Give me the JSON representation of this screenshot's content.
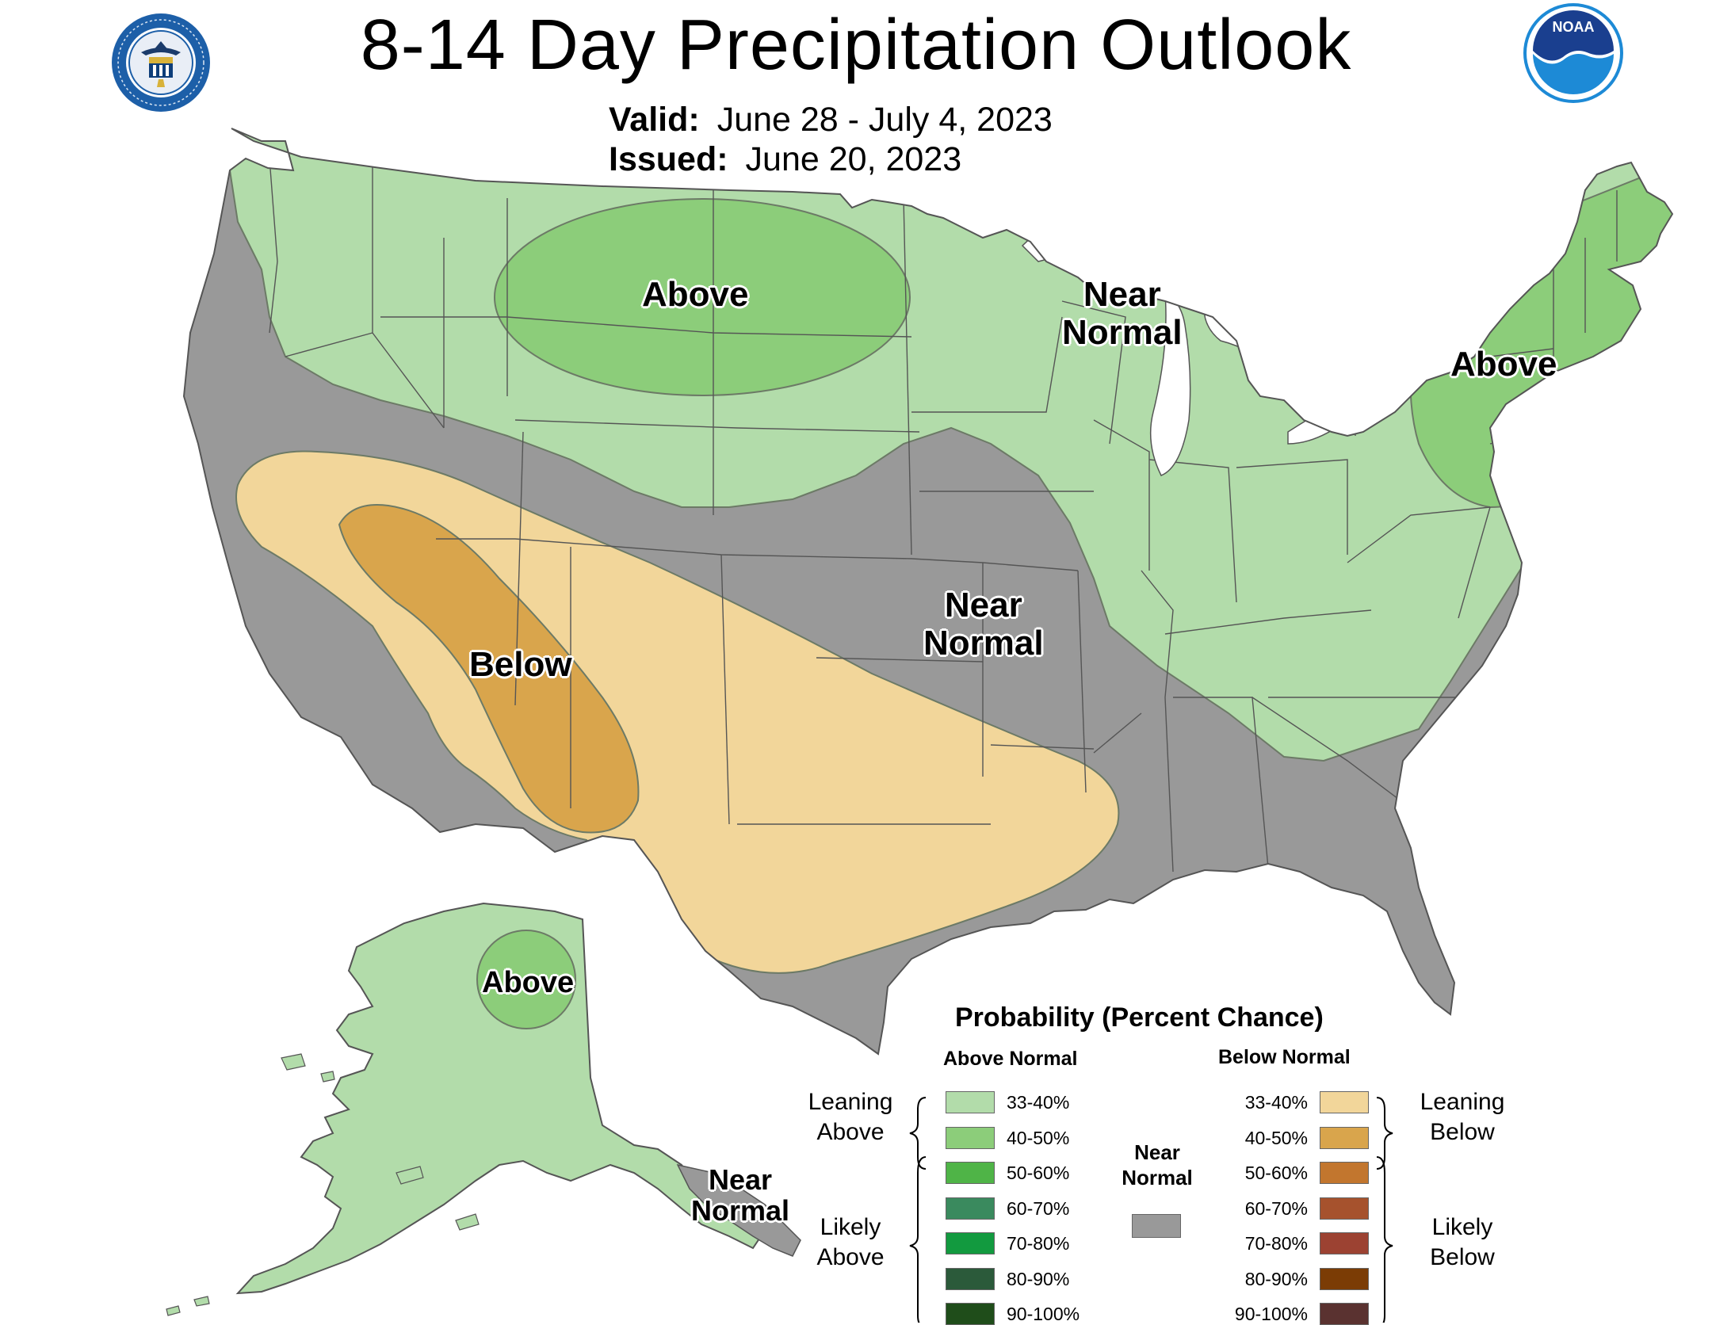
{
  "header": {
    "title": "8-14 Day Precipitation Outlook",
    "valid_label": "Valid:",
    "valid_value": "June 28 - July 4, 2023",
    "issued_label": "Issued:",
    "issued_value": "June 20, 2023"
  },
  "logos": {
    "left": "department-of-commerce-seal",
    "right": "noaa-logo",
    "noaa_text": "NOAA",
    "seal_text": "DEPARTMENT OF COMMERCE · UNITED STATES OF AMERICA"
  },
  "map_labels": {
    "above_north_plains": "Above",
    "near_normal_great_lakes_1": "Near",
    "near_normal_great_lakes_2": "Normal",
    "above_northeast": "Above",
    "below_southwest": "Below",
    "near_normal_central_1": "Near",
    "near_normal_central_2": "Normal",
    "above_alaska": "Above",
    "near_normal_alaska_1": "Near",
    "near_normal_alaska_2": "Normal"
  },
  "legend": {
    "title": "Probability (Percent Chance)",
    "above_header": "Above Normal",
    "below_header": "Below Normal",
    "near_normal_1": "Near",
    "near_normal_2": "Normal",
    "leaning_above_1": "Leaning",
    "leaning_above_2": "Above",
    "likely_above_1": "Likely",
    "likely_above_2": "Above",
    "leaning_below_1": "Leaning",
    "leaning_below_2": "Below",
    "likely_below_1": "Likely",
    "likely_below_2": "Below",
    "above_classes": [
      {
        "label": "33-40%",
        "color": "#b2dcaa"
      },
      {
        "label": "40-50%",
        "color": "#8ccd7a"
      },
      {
        "label": "50-60%",
        "color": "#4fb447"
      },
      {
        "label": "60-70%",
        "color": "#3a8a5e"
      },
      {
        "label": "70-80%",
        "color": "#129a3f"
      },
      {
        "label": "80-90%",
        "color": "#2b5a3a"
      },
      {
        "label": "90-100%",
        "color": "#1f4d1a"
      }
    ],
    "below_classes": [
      {
        "label": "33-40%",
        "color": "#f2d69a"
      },
      {
        "label": "40-50%",
        "color": "#d9a54c"
      },
      {
        "label": "50-60%",
        "color": "#c2762e"
      },
      {
        "label": "60-70%",
        "color": "#a6522d"
      },
      {
        "label": "70-80%",
        "color": "#9c4232"
      },
      {
        "label": "80-90%",
        "color": "#7b3c05"
      },
      {
        "label": "90-100%",
        "color": "#5a3230"
      }
    ],
    "near_normal_color": "#999999"
  },
  "colors": {
    "lake": "#ffffff",
    "state_lines": "#555555"
  }
}
